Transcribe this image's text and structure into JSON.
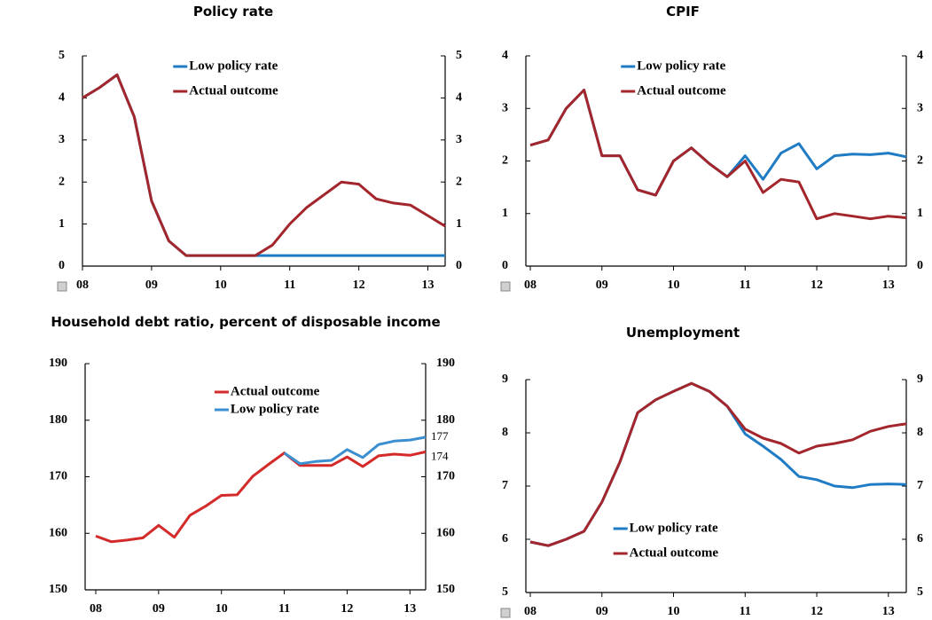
{
  "chart_data": [
    {
      "type": "line",
      "title": "Policy rate",
      "categories": [
        "08",
        null,
        null,
        null,
        "09",
        null,
        null,
        null,
        "10",
        null,
        null,
        null,
        "11",
        null,
        null,
        null,
        "12",
        null,
        null,
        null,
        "13",
        null
      ],
      "series": [
        {
          "name": "Low policy rate",
          "color": "#1f7cc4",
          "values": [
            4.0,
            4.25,
            4.55,
            3.55,
            1.55,
            0.6,
            0.25,
            0.25,
            0.25,
            0.25,
            0.25,
            0.25,
            0.25,
            0.25,
            0.25,
            0.25,
            0.25,
            0.25,
            0.25,
            0.25,
            0.25,
            0.25
          ]
        },
        {
          "name": "Actual outcome",
          "color": "#a3262c",
          "values": [
            4.0,
            4.25,
            4.55,
            3.55,
            1.55,
            0.6,
            0.25,
            0.25,
            0.25,
            0.25,
            0.25,
            0.5,
            1.0,
            1.4,
            1.7,
            2.0,
            1.95,
            1.6,
            1.5,
            1.45,
            1.2,
            0.95
          ]
        }
      ],
      "ylim": [
        0,
        5
      ],
      "yticks": [
        0,
        1,
        2,
        3,
        4,
        5
      ],
      "legend": "top"
    },
    {
      "type": "line",
      "title": "CPIF",
      "categories": [
        "08",
        null,
        null,
        null,
        "09",
        null,
        null,
        null,
        "10",
        null,
        null,
        null,
        "11",
        null,
        null,
        null,
        "12",
        null,
        null,
        null,
        "13",
        null
      ],
      "series": [
        {
          "name": "Low policy rate",
          "color": "#1f7cc4",
          "values": [
            2.3,
            2.4,
            3.0,
            3.35,
            2.1,
            2.1,
            1.45,
            1.35,
            2.0,
            2.25,
            1.95,
            1.7,
            2.1,
            1.65,
            2.15,
            2.33,
            1.85,
            2.1,
            2.13,
            2.12,
            2.15,
            2.08
          ]
        },
        {
          "name": "Actual outcome",
          "color": "#a3262c",
          "values": [
            2.3,
            2.4,
            3.0,
            3.35,
            2.1,
            2.1,
            1.45,
            1.35,
            2.0,
            2.25,
            1.95,
            1.7,
            2.0,
            1.4,
            1.65,
            1.6,
            0.9,
            1.0,
            0.95,
            0.9,
            0.95,
            0.92
          ]
        }
      ],
      "ylim": [
        0,
        4
      ],
      "yticks": [
        0,
        1,
        2,
        3,
        4
      ],
      "legend": "top"
    },
    {
      "type": "line",
      "title": "Household debt ratio, percent of disposable income",
      "categories": [
        "08",
        null,
        null,
        null,
        "09",
        null,
        null,
        null,
        "10",
        null,
        null,
        null,
        "11",
        null,
        null,
        null,
        "12",
        null,
        null,
        null,
        "13",
        null
      ],
      "series": [
        {
          "name": "Actual outcome",
          "color": "#d42a2a",
          "values": [
            159.5,
            158.5,
            158.8,
            159.2,
            161.4,
            159.3,
            163.2,
            164.8,
            166.7,
            166.8,
            170.1,
            172.2,
            174.2,
            172.0,
            172.0,
            172.0,
            173.5,
            171.8,
            173.7,
            174.0,
            173.8,
            174.4
          ]
        },
        {
          "name": "Low policy rate",
          "color": "#3b8fd0",
          "values": [
            null,
            null,
            null,
            null,
            null,
            null,
            null,
            null,
            null,
            null,
            null,
            null,
            174.2,
            172.3,
            172.7,
            172.9,
            174.8,
            173.4,
            175.7,
            176.3,
            176.5,
            177.0
          ]
        }
      ],
      "ylim": [
        150,
        190
      ],
      "yticks": [
        150,
        160,
        170,
        180,
        190
      ],
      "legend": "top-right",
      "annotations": [
        "177",
        "174"
      ]
    },
    {
      "type": "line",
      "title": "Unemployment",
      "categories": [
        "08",
        null,
        null,
        null,
        "09",
        null,
        null,
        null,
        "10",
        null,
        null,
        null,
        "11",
        null,
        null,
        null,
        "12",
        null,
        null,
        null,
        "13",
        null
      ],
      "series": [
        {
          "name": "Low policy rate",
          "color": "#1f7cc4",
          "values": [
            5.95,
            5.88,
            6.0,
            6.15,
            6.7,
            7.45,
            8.38,
            8.62,
            8.78,
            8.93,
            8.78,
            8.5,
            7.98,
            7.75,
            7.5,
            7.18,
            7.12,
            7.0,
            6.97,
            7.03,
            7.04,
            7.03
          ]
        },
        {
          "name": "Actual outcome",
          "color": "#a3262c",
          "values": [
            5.95,
            5.88,
            6.0,
            6.15,
            6.7,
            7.45,
            8.38,
            8.62,
            8.78,
            8.93,
            8.78,
            8.5,
            8.07,
            7.9,
            7.8,
            7.62,
            7.75,
            7.8,
            7.87,
            8.03,
            8.12,
            8.17
          ]
        }
      ],
      "ylim": [
        5,
        9
      ],
      "yticks": [
        5,
        6,
        7,
        8,
        9
      ],
      "legend": "bottom-left"
    }
  ]
}
